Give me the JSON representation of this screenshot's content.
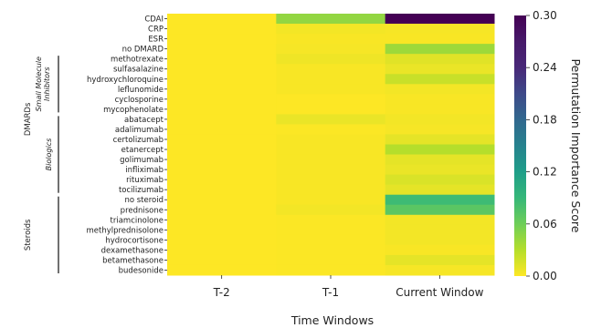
{
  "chart_data": {
    "type": "heatmap",
    "title": "",
    "xlabel": "Time Windows",
    "ylabel": "",
    "x_categories": [
      "T-2",
      "T-1",
      "Current Window"
    ],
    "y_categories": [
      "CDAI",
      "CRP",
      "ESR",
      "no DMARD",
      "methotrexate",
      "sulfasalazine",
      "hydroxychloroquine",
      "leflunomide",
      "cyclosporine",
      "mycophenolate",
      "abatacept",
      "adalimumab",
      "certolizumab",
      "etanercept",
      "golimumab",
      "infliximab",
      "rituximab",
      "tocilizumab",
      "no steroid",
      "prednisone",
      "triamcinolone",
      "methylprednisolone",
      "hydrocortisone",
      "dexamethasone",
      "betamethasone",
      "budesonide"
    ],
    "values": [
      [
        0.0,
        0.045,
        0.3
      ],
      [
        0.0,
        0.004,
        0.003
      ],
      [
        0.0,
        0.002,
        0.002
      ],
      [
        0.0,
        0.003,
        0.04
      ],
      [
        0.0,
        0.006,
        0.012
      ],
      [
        0.0,
        0.002,
        0.008
      ],
      [
        0.0,
        0.002,
        0.022
      ],
      [
        0.0,
        0.002,
        0.004
      ],
      [
        0.0,
        0.0,
        0.002
      ],
      [
        0.0,
        0.0,
        0.002
      ],
      [
        0.0,
        0.008,
        0.004
      ],
      [
        0.0,
        0.001,
        0.003
      ],
      [
        0.0,
        0.002,
        0.01
      ],
      [
        0.0,
        0.002,
        0.03
      ],
      [
        0.0,
        0.002,
        0.01
      ],
      [
        0.0,
        0.002,
        0.008
      ],
      [
        0.0,
        0.002,
        0.015
      ],
      [
        0.0,
        0.002,
        0.01
      ],
      [
        0.0,
        0.002,
        0.085
      ],
      [
        0.0,
        0.004,
        0.07
      ],
      [
        0.0,
        0.001,
        0.004
      ],
      [
        0.0,
        0.001,
        0.004
      ],
      [
        0.0,
        0.001,
        0.004
      ],
      [
        0.0,
        0.001,
        0.002
      ],
      [
        0.0,
        0.001,
        0.01
      ],
      [
        0.0,
        0.001,
        0.003
      ]
    ],
    "colorbar": {
      "label": "Permutation Importance Score",
      "range": [
        0.0,
        0.3
      ],
      "ticks": [
        "0.00",
        "0.06",
        "0.12",
        "0.18",
        "0.24",
        "0.30"
      ],
      "colormap": "viridis_r"
    },
    "row_groups": [
      {
        "label": "DMARDs",
        "start": 3,
        "end": 17,
        "style": "normal"
      },
      {
        "label": "Small Molecule Inhibitors",
        "start": 4,
        "end": 9,
        "style": "italic"
      },
      {
        "label": "Biologics",
        "start": 10,
        "end": 17,
        "style": "italic"
      },
      {
        "label": "Steroids",
        "start": 18,
        "end": 25,
        "style": "normal"
      }
    ]
  }
}
